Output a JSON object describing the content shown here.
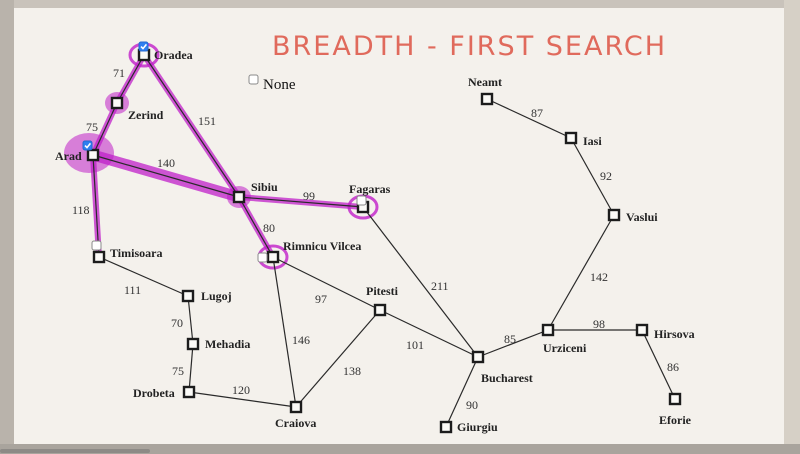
{
  "title": "BREADTH - FIRST SEARCH",
  "none_option": {
    "label": "None",
    "checked": false
  },
  "colors": {
    "highlight": "#c01fc9",
    "title": "#e06a5c",
    "checkbox_checked": "#2f7ff0"
  },
  "nodes": [
    {
      "id": "Oradea",
      "label": "Oradea",
      "checkbox": "checked",
      "highlight": "ring"
    },
    {
      "id": "Zerind",
      "label": "Zerind",
      "checkbox": null,
      "highlight": "blob"
    },
    {
      "id": "Arad",
      "label": "Arad",
      "checkbox": "checked",
      "highlight": "blob-large"
    },
    {
      "id": "Timisoara",
      "label": "Timisoara",
      "checkbox": "unchecked",
      "highlight": null
    },
    {
      "id": "Sibiu",
      "label": "Sibiu",
      "checkbox": null,
      "highlight": "blob"
    },
    {
      "id": "Fagaras",
      "label": "Fagaras",
      "checkbox": "unchecked",
      "highlight": "ring"
    },
    {
      "id": "Rimnicu",
      "label": "Rimnicu Vilcea",
      "checkbox": "unchecked",
      "highlight": "ring"
    },
    {
      "id": "Lugoj",
      "label": "Lugoj",
      "checkbox": null,
      "highlight": null
    },
    {
      "id": "Mehadia",
      "label": "Mehadia",
      "checkbox": null,
      "highlight": null
    },
    {
      "id": "Drobeta",
      "label": "Drobeta",
      "checkbox": null,
      "highlight": null
    },
    {
      "id": "Craiova",
      "label": "Craiova",
      "checkbox": null,
      "highlight": null
    },
    {
      "id": "Pitesti",
      "label": "Pitesti",
      "checkbox": null,
      "highlight": null
    },
    {
      "id": "Bucharest",
      "label": "Bucharest",
      "checkbox": null,
      "highlight": null
    },
    {
      "id": "Giurgiu",
      "label": "Giurgiu",
      "checkbox": null,
      "highlight": null
    },
    {
      "id": "Neamt",
      "label": "Neamt",
      "checkbox": null,
      "highlight": null
    },
    {
      "id": "Iasi",
      "label": "Iasi",
      "checkbox": null,
      "highlight": null
    },
    {
      "id": "Vaslui",
      "label": "Vaslui",
      "checkbox": null,
      "highlight": null
    },
    {
      "id": "Urziceni",
      "label": "Urziceni",
      "checkbox": null,
      "highlight": null
    },
    {
      "id": "Hirsova",
      "label": "Hirsova",
      "checkbox": null,
      "highlight": null
    },
    {
      "id": "Eforie",
      "label": "Eforie",
      "checkbox": null,
      "highlight": null
    }
  ],
  "edges": [
    {
      "from": "Oradea",
      "to": "Zerind",
      "distance": "71",
      "highlighted": true
    },
    {
      "from": "Oradea",
      "to": "Sibiu",
      "distance": "151",
      "highlighted": true
    },
    {
      "from": "Zerind",
      "to": "Arad",
      "distance": "75",
      "highlighted": true
    },
    {
      "from": "Arad",
      "to": "Sibiu",
      "distance": "140",
      "highlighted": true
    },
    {
      "from": "Arad",
      "to": "Timisoara",
      "distance": "118",
      "highlighted": true
    },
    {
      "from": "Sibiu",
      "to": "Fagaras",
      "distance": "99",
      "highlighted": true
    },
    {
      "from": "Sibiu",
      "to": "Rimnicu",
      "distance": "80",
      "highlighted": true
    },
    {
      "from": "Timisoara",
      "to": "Lugoj",
      "distance": "111",
      "highlighted": false
    },
    {
      "from": "Lugoj",
      "to": "Mehadia",
      "distance": "70",
      "highlighted": false
    },
    {
      "from": "Mehadia",
      "to": "Drobeta",
      "distance": "75",
      "highlighted": false
    },
    {
      "from": "Drobeta",
      "to": "Craiova",
      "distance": "120",
      "highlighted": false
    },
    {
      "from": "Rimnicu",
      "to": "Craiova",
      "distance": "146",
      "highlighted": false
    },
    {
      "from": "Rimnicu",
      "to": "Pitesti",
      "distance": "97",
      "highlighted": false
    },
    {
      "from": "Craiova",
      "to": "Pitesti",
      "distance": "138",
      "highlighted": false
    },
    {
      "from": "Pitesti",
      "to": "Bucharest",
      "distance": "101",
      "highlighted": false
    },
    {
      "from": "Fagaras",
      "to": "Bucharest",
      "distance": "211",
      "highlighted": false
    },
    {
      "from": "Bucharest",
      "to": "Giurgiu",
      "distance": "90",
      "highlighted": false
    },
    {
      "from": "Bucharest",
      "to": "Urziceni",
      "distance": "85",
      "highlighted": false
    },
    {
      "from": "Urziceni",
      "to": "Vaslui",
      "distance": "142",
      "highlighted": false
    },
    {
      "from": "Vaslui",
      "to": "Iasi",
      "distance": "92",
      "highlighted": false
    },
    {
      "from": "Iasi",
      "to": "Neamt",
      "distance": "87",
      "highlighted": false
    },
    {
      "from": "Urziceni",
      "to": "Hirsova",
      "distance": "98",
      "highlighted": false
    },
    {
      "from": "Hirsova",
      "to": "Eforie",
      "distance": "86",
      "highlighted": false
    }
  ]
}
